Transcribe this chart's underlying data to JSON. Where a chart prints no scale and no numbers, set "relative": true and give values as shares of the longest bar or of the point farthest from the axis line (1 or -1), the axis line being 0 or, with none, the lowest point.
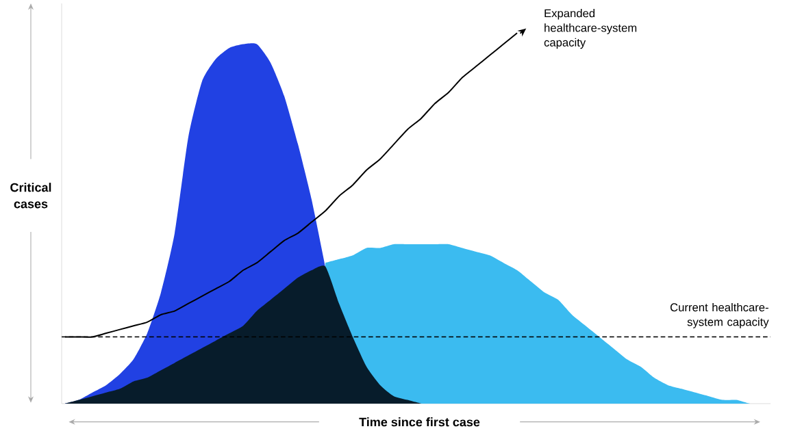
{
  "chart_data": {
    "type": "area",
    "relative": true,
    "xlabel": "Time since first case",
    "ylabel": "Critical cases",
    "categories": [
      null,
      null,
      null,
      null,
      null,
      null,
      null,
      null,
      null,
      null,
      null,
      null,
      null,
      null,
      null,
      null,
      null,
      null,
      null,
      null,
      null,
      null,
      null,
      null,
      null,
      null,
      null,
      null,
      null,
      null,
      null,
      null,
      null,
      null,
      null,
      null,
      null,
      null,
      null,
      null,
      null,
      null,
      null,
      null,
      null,
      null,
      null,
      null,
      null,
      null,
      null,
      null
    ],
    "series": [
      {
        "color": "#2141e3",
        "values": [
          0,
          0.01,
          0.03,
          0.05,
          0.08,
          0.12,
          0.19,
          0.3,
          0.46,
          0.72,
          0.87,
          0.93,
          0.96,
          0.97,
          0.97,
          0.92,
          0.83,
          0.7,
          0.55,
          0.37,
          null,
          null,
          null,
          null,
          null,
          null,
          null,
          null,
          null,
          null,
          null,
          null,
          null,
          null,
          null,
          null,
          null,
          null,
          null,
          null,
          null,
          null,
          null,
          null,
          null,
          null,
          null,
          null,
          null,
          null,
          null,
          null
        ]
      },
      {
        "color": "#3bbbf0",
        "values": [
          null,
          null,
          null,
          null,
          null,
          null,
          null,
          null,
          null,
          null,
          null,
          null,
          null,
          null,
          null,
          null,
          null,
          null,
          null,
          0.38,
          0.39,
          0.4,
          0.42,
          0.42,
          0.43,
          0.43,
          0.43,
          0.43,
          0.43,
          0.42,
          0.41,
          0.4,
          0.38,
          0.36,
          0.33,
          0.3,
          0.28,
          0.24,
          0.21,
          0.18,
          0.15,
          0.12,
          0.1,
          0.07,
          0.05,
          0.04,
          0.03,
          0.02,
          0.01,
          0.01,
          0,
          0
        ]
      },
      {
        "color": "#071c2b",
        "values": [
          0,
          0.01,
          0.02,
          0.03,
          0.04,
          0.06,
          0.07,
          0.09,
          0.11,
          0.13,
          0.15,
          0.17,
          0.19,
          0.21,
          0.25,
          0.28,
          0.31,
          0.34,
          0.36,
          0.37,
          0.27,
          0.18,
          0.1,
          0.05,
          0.02,
          0.01,
          0,
          null,
          null,
          null,
          null,
          null,
          null,
          null,
          null,
          null,
          null,
          null,
          null,
          null,
          null,
          null,
          null,
          null,
          null,
          null,
          null,
          null,
          null,
          null,
          null,
          null
        ]
      },
      {
        "type": "line",
        "name": "Expanded healthcare-system capacity",
        "color": "#000000",
        "values": [
          0.18,
          0.18,
          0.18,
          0.19,
          0.2,
          0.21,
          0.22,
          0.24,
          0.25,
          0.27,
          0.29,
          0.31,
          0.33,
          0.36,
          0.38,
          0.41,
          0.44,
          0.46,
          0.49,
          0.52,
          0.56,
          0.59,
          0.63,
          0.66,
          0.7,
          0.74,
          0.77,
          0.81,
          0.84,
          0.88,
          0.91,
          0.94,
          0.97,
          1.0,
          null,
          null,
          null,
          null,
          null,
          null,
          null,
          null,
          null,
          null,
          null,
          null,
          null,
          null,
          null,
          null,
          null,
          null
        ]
      }
    ],
    "ref_lines": [
      {
        "axis": "y",
        "value": 0.18,
        "label": "Current healthcare-system capacity",
        "color": "#000000",
        "line_style": "dashed"
      }
    ]
  }
}
